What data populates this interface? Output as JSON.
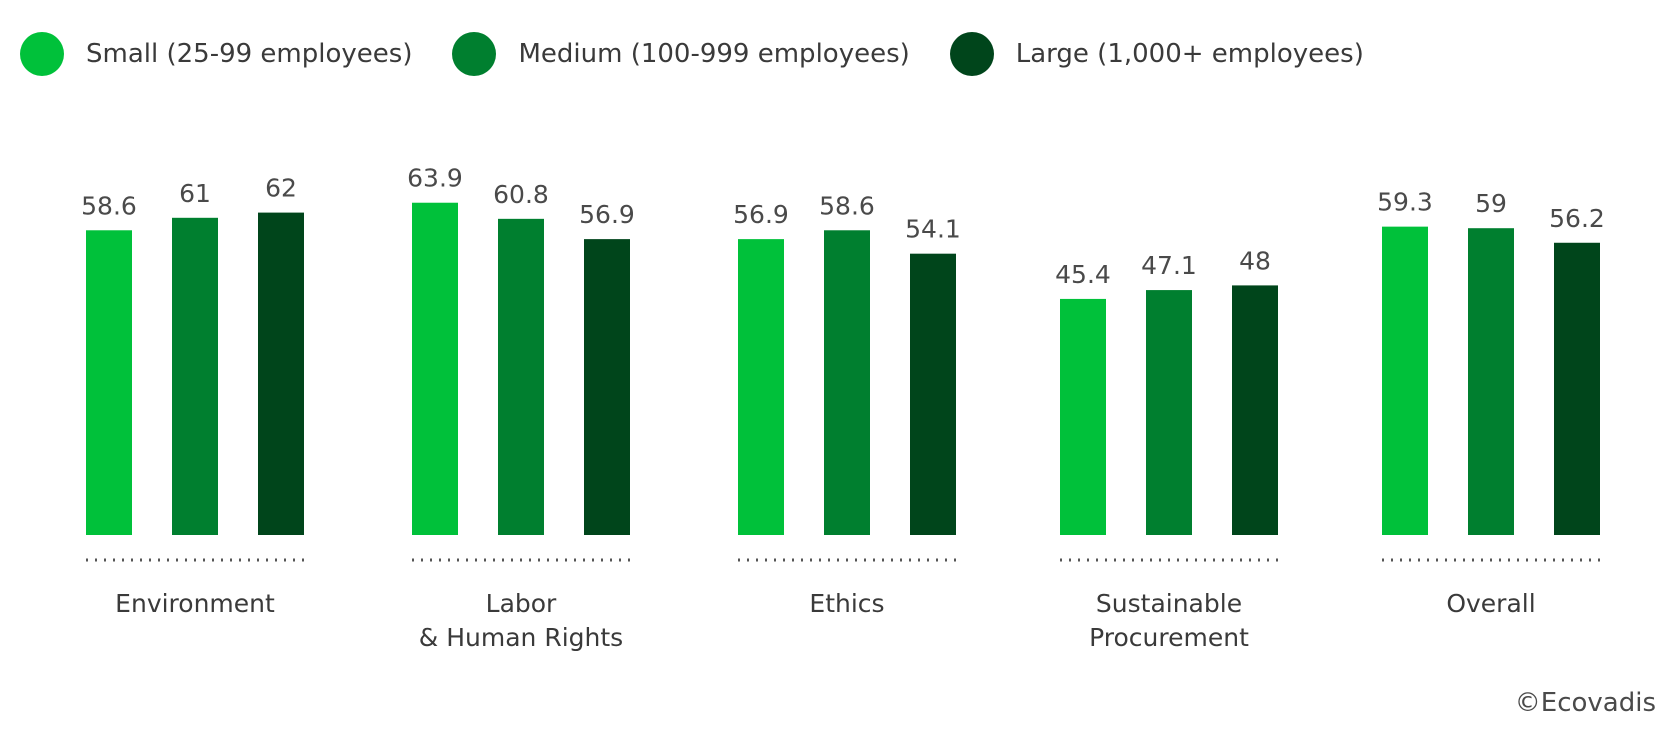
{
  "legend": {
    "items": [
      {
        "label": "Small (25-99 employees)",
        "color": "#00c13a"
      },
      {
        "label": "Medium (100-999 employees)",
        "color": "#007f2f"
      },
      {
        "label": "Large (1,000+ employees)",
        "color": "#00451b"
      }
    ]
  },
  "credit": "©Ecovadis",
  "chart_data": {
    "type": "bar",
    "categories": [
      [
        "Environment"
      ],
      [
        "Labor",
        "& Human Rights"
      ],
      [
        "Ethics"
      ],
      [
        "Sustainable",
        "Procurement"
      ],
      [
        "Overall"
      ]
    ],
    "series": [
      {
        "name": "Small (25-99 employees)",
        "color": "#00c13a",
        "values": [
          58.6,
          63.9,
          56.9,
          45.4,
          59.3
        ],
        "labels": [
          "58.6",
          "63.9",
          "56.9",
          "45.4",
          "59.3"
        ]
      },
      {
        "name": "Medium (100-999 employees)",
        "color": "#007f2f",
        "values": [
          61,
          60.8,
          58.6,
          47.1,
          59
        ],
        "labels": [
          "61",
          "60.8",
          "58.6",
          "47.1",
          "59"
        ]
      },
      {
        "name": "Large (1,000+ employees)",
        "color": "#00451b",
        "values": [
          62,
          56.9,
          54.1,
          48,
          56.2
        ],
        "labels": [
          "62",
          "56.9",
          "54.1",
          "48",
          "56.2"
        ]
      }
    ],
    "ylim": [
      0,
      64
    ],
    "grid": false,
    "legend_position": "top-left"
  }
}
